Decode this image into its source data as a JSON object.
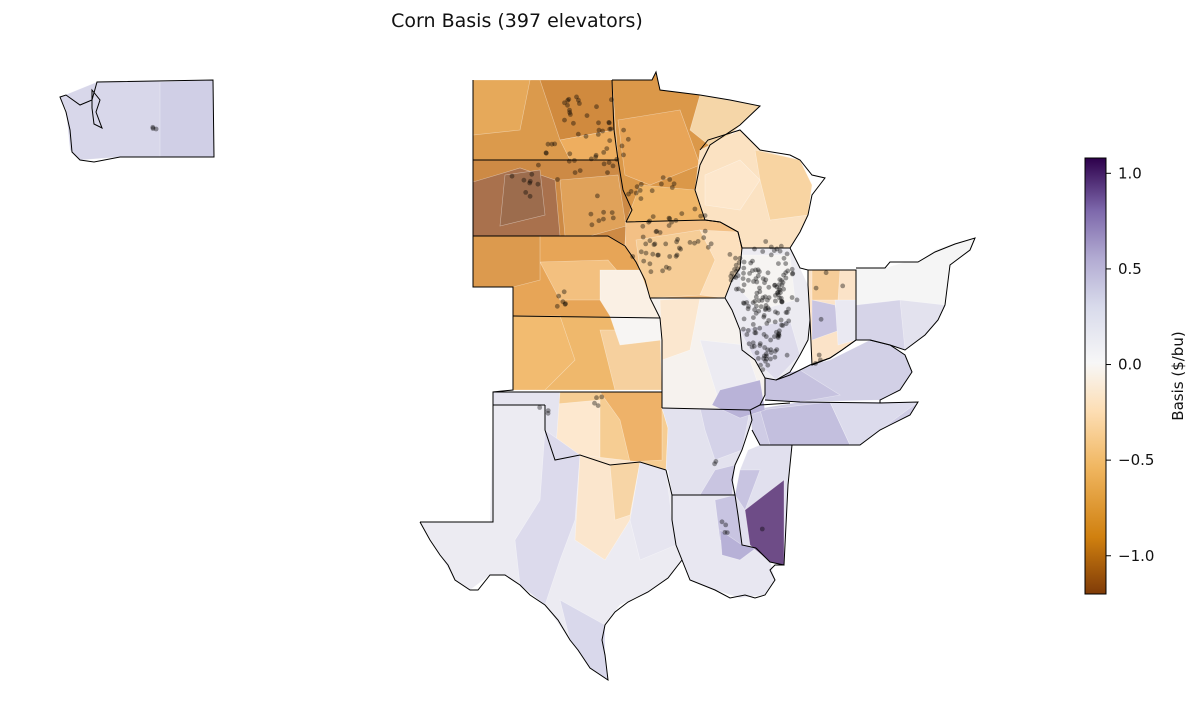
{
  "title": "Corn Basis (397 elevators)",
  "colorbar": {
    "label": "Basis ($/bu)",
    "min": -1.2,
    "max": 1.08,
    "ticks": [
      {
        "value": 1.0,
        "label": "1.0"
      },
      {
        "value": 0.5,
        "label": "0.5"
      },
      {
        "value": 0.0,
        "label": "0.0"
      },
      {
        "value": -0.5,
        "label": "−0.5"
      },
      {
        "value": -1.0,
        "label": "−1.0"
      }
    ],
    "colormap": "PuOr (orange negative, purple positive)",
    "stops": [
      {
        "value": -1.2,
        "color": "#7f3b08"
      },
      {
        "value": -0.9,
        "color": "#d0800f"
      },
      {
        "value": -0.55,
        "color": "#f0b660"
      },
      {
        "value": -0.25,
        "color": "#fddeb4"
      },
      {
        "value": 0.0,
        "color": "#f7f7f7"
      },
      {
        "value": 0.3,
        "color": "#d8daeb"
      },
      {
        "value": 0.55,
        "color": "#b2abd2"
      },
      {
        "value": 0.8,
        "color": "#7d68ab"
      },
      {
        "value": 1.08,
        "color": "#2d004b"
      }
    ]
  },
  "chart_data": {
    "type": "map",
    "title": "Corn Basis (397 elevators)",
    "elevator_count": 397,
    "regions_basis": [
      {
        "region": "Washington",
        "basis": 0.3
      },
      {
        "region": "North Dakota",
        "basis": -0.7
      },
      {
        "region": "South Dakota (central-west)",
        "basis": -1.0
      },
      {
        "region": "South Dakota (east)",
        "basis": -0.6
      },
      {
        "region": "Minnesota",
        "basis": -0.6
      },
      {
        "region": "Wisconsin",
        "basis": -0.2
      },
      {
        "region": "Iowa",
        "basis": -0.4
      },
      {
        "region": "Nebraska",
        "basis": -0.7
      },
      {
        "region": "Kansas",
        "basis": -0.6
      },
      {
        "region": "Missouri",
        "basis": 0.0
      },
      {
        "region": "Illinois",
        "basis": 0.05
      },
      {
        "region": "Indiana",
        "basis": -0.15
      },
      {
        "region": "Ohio",
        "basis": 0.0
      },
      {
        "region": "Kentucky",
        "basis": 0.3
      },
      {
        "region": "Tennessee",
        "basis": 0.3
      },
      {
        "region": "Oklahoma",
        "basis": -0.4
      },
      {
        "region": "Arkansas",
        "basis": 0.2
      },
      {
        "region": "Mississippi (east)",
        "basis": 0.85
      },
      {
        "region": "Louisiana",
        "basis": 0.05
      },
      {
        "region": "Texas",
        "basis": 0.15
      }
    ]
  }
}
